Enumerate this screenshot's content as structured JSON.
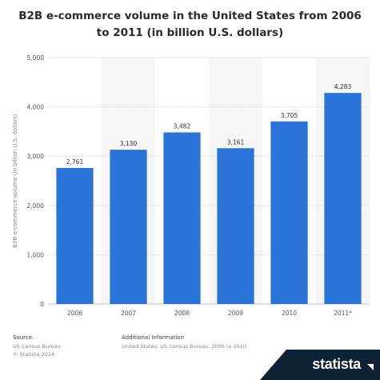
{
  "chart_data": {
    "type": "bar",
    "title": "B2B e-commerce volume in the United States from 2006 to 2011 (in billion U.S. dollars)",
    "xlabel": "",
    "ylabel": "B2B e-commerce volume (in billion U.S. dollars)",
    "categories": [
      "2006",
      "2007",
      "2008",
      "2009",
      "2010",
      "2011*"
    ],
    "values": [
      2761,
      3130,
      3482,
      3161,
      3705,
      4283
    ],
    "value_labels": [
      "2,761",
      "3,130",
      "3,482",
      "3,161",
      "3,705",
      "4,283"
    ],
    "ylim": [
      0,
      5000
    ],
    "yticks": [
      0,
      1000,
      2000,
      3000,
      4000,
      5000
    ],
    "ytick_labels": [
      "0",
      "1,000",
      "2,000",
      "3,000",
      "4,000",
      "5,000"
    ],
    "grid": true,
    "bar_color": "#2a74d9"
  },
  "footer": {
    "source_heading": "Source:",
    "source_lines": [
      "US Census Bureau",
      "© Statista 2014"
    ],
    "additional_heading": "Additional Information",
    "additional_text": "United States; US Census Bureau; 2006 to 2010",
    "brand": "statista"
  }
}
